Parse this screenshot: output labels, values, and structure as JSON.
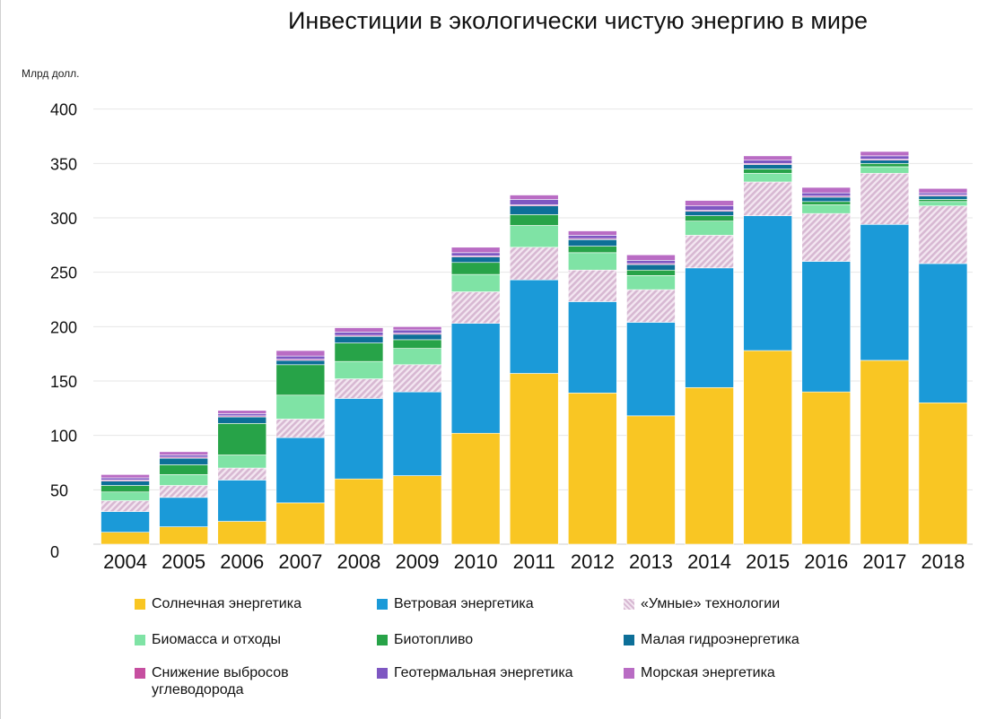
{
  "title": "Инвестиции в экологически чистую энергию в мире",
  "unit_label": "Млрд долл.",
  "chart_data": {
    "type": "bar",
    "stacked": true,
    "title": "Инвестиции в экологически чистую энергию в мире",
    "ylabel": "Млрд долл.",
    "xlabel": "",
    "ylim": [
      0,
      400
    ],
    "yticks": [
      0,
      50,
      100,
      150,
      200,
      250,
      300,
      350,
      400
    ],
    "grid": true,
    "legend_position": "bottom",
    "categories": [
      "2004",
      "2005",
      "2006",
      "2007",
      "2008",
      "2009",
      "2010",
      "2011",
      "2012",
      "2013",
      "2014",
      "2015",
      "2016",
      "2017",
      "2018"
    ],
    "series": [
      {
        "name": "Солнечная энергетика",
        "color": "#f9c623",
        "pattern": "solid",
        "values": [
          11,
          16,
          21,
          38,
          60,
          63,
          102,
          157,
          139,
          118,
          144,
          178,
          140,
          169,
          130
        ]
      },
      {
        "name": "Ветровая энергетика",
        "color": "#1b9ad8",
        "pattern": "solid",
        "values": [
          19,
          27,
          38,
          60,
          74,
          77,
          101,
          86,
          84,
          86,
          110,
          124,
          120,
          125,
          128
        ]
      },
      {
        "name": "«Умные» технологии",
        "color": "#d7b8d2",
        "pattern": "hatch",
        "values": [
          10,
          11,
          11,
          17,
          18,
          25,
          29,
          30,
          29,
          30,
          30,
          31,
          44,
          47,
          53
        ]
      },
      {
        "name": "Биомасса и отходы",
        "color": "#7fe3a5",
        "pattern": "solid",
        "values": [
          8,
          10,
          12,
          22,
          16,
          15,
          16,
          20,
          16,
          13,
          13,
          8,
          8,
          6,
          4
        ]
      },
      {
        "name": "Биотопливо",
        "color": "#27a348",
        "pattern": "solid",
        "values": [
          6,
          9,
          29,
          28,
          17,
          8,
          11,
          10,
          6,
          5,
          5,
          4,
          3,
          3,
          2
        ]
      },
      {
        "name": "Малая гидроэнергетика",
        "color": "#0d6f98",
        "pattern": "solid",
        "values": [
          4,
          6,
          6,
          4,
          6,
          5,
          5,
          8,
          6,
          5,
          4,
          4,
          4,
          3,
          3
        ]
      },
      {
        "name": "Снижение выбросов углеводорода",
        "color": "#c64fa0",
        "pattern": "solid",
        "values": [
          1,
          1,
          1,
          1,
          1,
          1,
          1,
          1,
          1,
          1,
          1,
          1,
          1,
          1,
          1
        ]
      },
      {
        "name": "Геотермальная энергетика",
        "color": "#7e57c2",
        "pattern": "solid",
        "values": [
          2,
          2,
          2,
          3,
          3,
          3,
          3,
          5,
          3,
          3,
          4,
          3,
          3,
          3,
          2
        ]
      },
      {
        "name": "Морская энергетика",
        "color": "#b96cc4",
        "pattern": "solid",
        "values": [
          3,
          3,
          3,
          5,
          4,
          3,
          5,
          4,
          4,
          5,
          5,
          4,
          5,
          4,
          4
        ]
      }
    ]
  }
}
